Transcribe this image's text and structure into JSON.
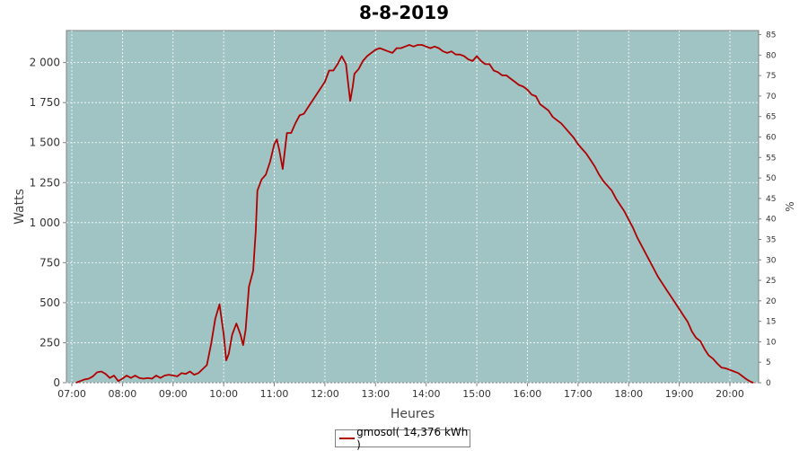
{
  "chart_data": {
    "type": "line",
    "title": "8-8-2019",
    "xlabel": "Heures",
    "ylabel": "Watts",
    "y2label": "%",
    "xlim": [
      "07:00",
      "20:30"
    ],
    "ylim": [
      0,
      2200
    ],
    "y2lim": [
      0,
      86
    ],
    "grid": true,
    "legend": "bottom-center",
    "x_ticks": [
      "07:00",
      "08:00",
      "09:00",
      "10:00",
      "11:00",
      "12:00",
      "13:00",
      "14:00",
      "15:00",
      "16:00",
      "17:00",
      "18:00",
      "19:00",
      "20:00"
    ],
    "y_ticks": [
      {
        "value": 0,
        "label": "0"
      },
      {
        "value": 250,
        "label": "250"
      },
      {
        "value": 500,
        "label": "500"
      },
      {
        "value": 750,
        "label": "750"
      },
      {
        "value": 1000,
        "label": "1 000"
      },
      {
        "value": 1250,
        "label": "1 250"
      },
      {
        "value": 1500,
        "label": "1 500"
      },
      {
        "value": 1750,
        "label": "1 750"
      },
      {
        "value": 2000,
        "label": "2 000"
      }
    ],
    "y2_ticks": [
      "0",
      "5",
      "10",
      "15",
      "20",
      "25",
      "30",
      "35",
      "40",
      "45",
      "50",
      "55",
      "60",
      "65",
      "70",
      "75",
      "80",
      "85"
    ],
    "colors": {
      "plot_bg": "#a0c4c4",
      "line": "#b00000",
      "grid": "#ffffff"
    },
    "series": [
      {
        "name": "gmosol( 14,376 kWh )",
        "points": [
          [
            "07:05",
            0
          ],
          [
            "07:10",
            10
          ],
          [
            "07:15",
            20
          ],
          [
            "07:20",
            25
          ],
          [
            "07:25",
            40
          ],
          [
            "07:30",
            65
          ],
          [
            "07:35",
            70
          ],
          [
            "07:40",
            55
          ],
          [
            "07:45",
            30
          ],
          [
            "07:50",
            45
          ],
          [
            "07:55",
            10
          ],
          [
            "08:00",
            25
          ],
          [
            "08:05",
            45
          ],
          [
            "08:10",
            30
          ],
          [
            "08:15",
            45
          ],
          [
            "08:20",
            30
          ],
          [
            "08:25",
            25
          ],
          [
            "08:30",
            30
          ],
          [
            "08:35",
            25
          ],
          [
            "08:40",
            45
          ],
          [
            "08:45",
            30
          ],
          [
            "08:50",
            45
          ],
          [
            "08:55",
            50
          ],
          [
            "09:00",
            45
          ],
          [
            "09:05",
            40
          ],
          [
            "09:10",
            60
          ],
          [
            "09:15",
            55
          ],
          [
            "09:20",
            70
          ],
          [
            "09:25",
            50
          ],
          [
            "09:30",
            60
          ],
          [
            "09:35",
            85
          ],
          [
            "09:40",
            110
          ],
          [
            "09:45",
            240
          ],
          [
            "09:50",
            400
          ],
          [
            "09:55",
            490
          ],
          [
            "10:00",
            300
          ],
          [
            "10:03",
            140
          ],
          [
            "10:06",
            180
          ],
          [
            "10:10",
            300
          ],
          [
            "10:15",
            370
          ],
          [
            "10:20",
            300
          ],
          [
            "10:23",
            235
          ],
          [
            "10:26",
            330
          ],
          [
            "10:30",
            600
          ],
          [
            "10:35",
            700
          ],
          [
            "10:38",
            950
          ],
          [
            "10:40",
            1200
          ],
          [
            "10:45",
            1270
          ],
          [
            "10:50",
            1300
          ],
          [
            "10:55",
            1380
          ],
          [
            "11:00",
            1490
          ],
          [
            "11:03",
            1520
          ],
          [
            "11:06",
            1450
          ],
          [
            "11:10",
            1335
          ],
          [
            "11:15",
            1560
          ],
          [
            "11:20",
            1560
          ],
          [
            "11:25",
            1620
          ],
          [
            "11:30",
            1670
          ],
          [
            "11:35",
            1680
          ],
          [
            "11:40",
            1720
          ],
          [
            "11:45",
            1760
          ],
          [
            "11:50",
            1800
          ],
          [
            "11:55",
            1840
          ],
          [
            "12:00",
            1880
          ],
          [
            "12:05",
            1950
          ],
          [
            "12:10",
            1950
          ],
          [
            "12:15",
            1990
          ],
          [
            "12:20",
            2040
          ],
          [
            "12:25",
            1990
          ],
          [
            "12:28",
            1850
          ],
          [
            "12:30",
            1760
          ],
          [
            "12:33",
            1850
          ],
          [
            "12:35",
            1930
          ],
          [
            "12:40",
            1960
          ],
          [
            "12:45",
            2010
          ],
          [
            "12:50",
            2040
          ],
          [
            "12:55",
            2060
          ],
          [
            "13:00",
            2080
          ],
          [
            "13:05",
            2090
          ],
          [
            "13:10",
            2080
          ],
          [
            "13:15",
            2070
          ],
          [
            "13:20",
            2060
          ],
          [
            "13:25",
            2090
          ],
          [
            "13:30",
            2090
          ],
          [
            "13:35",
            2100
          ],
          [
            "13:40",
            2110
          ],
          [
            "13:45",
            2100
          ],
          [
            "13:50",
            2110
          ],
          [
            "13:55",
            2110
          ],
          [
            "14:00",
            2100
          ],
          [
            "14:05",
            2090
          ],
          [
            "14:10",
            2100
          ],
          [
            "14:15",
            2090
          ],
          [
            "14:20",
            2070
          ],
          [
            "14:25",
            2060
          ],
          [
            "14:30",
            2070
          ],
          [
            "14:35",
            2050
          ],
          [
            "14:40",
            2050
          ],
          [
            "14:45",
            2040
          ],
          [
            "14:50",
            2020
          ],
          [
            "14:55",
            2010
          ],
          [
            "15:00",
            2040
          ],
          [
            "15:05",
            2010
          ],
          [
            "15:10",
            1990
          ],
          [
            "15:15",
            1990
          ],
          [
            "15:20",
            1950
          ],
          [
            "15:25",
            1940
          ],
          [
            "15:30",
            1920
          ],
          [
            "15:35",
            1920
          ],
          [
            "15:40",
            1900
          ],
          [
            "15:45",
            1880
          ],
          [
            "15:50",
            1860
          ],
          [
            "15:55",
            1850
          ],
          [
            "16:00",
            1830
          ],
          [
            "16:05",
            1800
          ],
          [
            "16:10",
            1790
          ],
          [
            "16:15",
            1740
          ],
          [
            "16:20",
            1720
          ],
          [
            "16:25",
            1700
          ],
          [
            "16:30",
            1660
          ],
          [
            "16:35",
            1640
          ],
          [
            "16:40",
            1620
          ],
          [
            "16:45",
            1590
          ],
          [
            "16:50",
            1560
          ],
          [
            "16:55",
            1530
          ],
          [
            "17:00",
            1490
          ],
          [
            "17:05",
            1460
          ],
          [
            "17:10",
            1430
          ],
          [
            "17:15",
            1390
          ],
          [
            "17:20",
            1350
          ],
          [
            "17:25",
            1300
          ],
          [
            "17:30",
            1260
          ],
          [
            "17:35",
            1230
          ],
          [
            "17:40",
            1200
          ],
          [
            "17:45",
            1150
          ],
          [
            "17:50",
            1110
          ],
          [
            "17:55",
            1070
          ],
          [
            "18:00",
            1020
          ],
          [
            "18:05",
            970
          ],
          [
            "18:10",
            910
          ],
          [
            "18:15",
            860
          ],
          [
            "18:20",
            810
          ],
          [
            "18:25",
            760
          ],
          [
            "18:30",
            710
          ],
          [
            "18:35",
            660
          ],
          [
            "18:40",
            620
          ],
          [
            "18:45",
            580
          ],
          [
            "18:50",
            540
          ],
          [
            "18:55",
            500
          ],
          [
            "19:00",
            460
          ],
          [
            "19:05",
            420
          ],
          [
            "19:10",
            380
          ],
          [
            "19:15",
            320
          ],
          [
            "19:20",
            280
          ],
          [
            "19:25",
            260
          ],
          [
            "19:30",
            210
          ],
          [
            "19:35",
            170
          ],
          [
            "19:40",
            150
          ],
          [
            "19:45",
            120
          ],
          [
            "19:50",
            95
          ],
          [
            "19:55",
            90
          ],
          [
            "20:00",
            80
          ],
          [
            "20:05",
            70
          ],
          [
            "20:10",
            60
          ],
          [
            "20:15",
            40
          ],
          [
            "20:20",
            20
          ],
          [
            "20:25",
            5
          ],
          [
            "20:28",
            0
          ]
        ]
      }
    ]
  }
}
